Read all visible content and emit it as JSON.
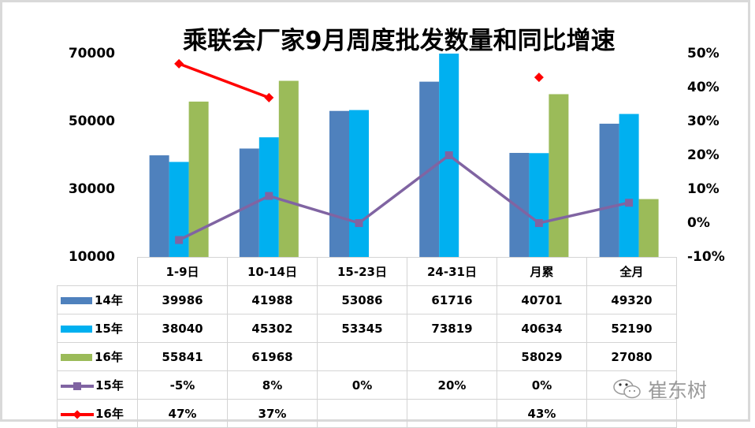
{
  "title": "乘联会厂家9月周度批发数量和同比增速",
  "colors": {
    "s14": "#4f81bd",
    "s15": "#00b0f0",
    "s16": "#9bbb59",
    "g15": "#8064a2",
    "g16": "#ff0000",
    "grid": "#d4d4d4"
  },
  "axes": {
    "left_ticks": [
      "70000",
      "50000",
      "30000",
      "10000"
    ],
    "right_ticks": [
      "50%",
      "40%",
      "30%",
      "20%",
      "10%",
      "0%",
      "-10%"
    ]
  },
  "table": {
    "headers": [
      "1-9日",
      "10-14日",
      "15-23日",
      "24-31日",
      "月累",
      "全月"
    ],
    "rows": [
      {
        "label": "14年",
        "legend": "bar",
        "color_key": "s14",
        "cells": [
          "39986",
          "41988",
          "53086",
          "61716",
          "40701",
          "49320"
        ]
      },
      {
        "label": "15年",
        "legend": "bar",
        "color_key": "s15",
        "cells": [
          "38040",
          "45302",
          "53345",
          "73819",
          "40634",
          "52190"
        ]
      },
      {
        "label": "16年",
        "legend": "bar",
        "color_key": "s16",
        "cells": [
          "55841",
          "61968",
          "",
          "",
          "58029",
          "27080"
        ]
      },
      {
        "label": "15年",
        "legend": "line-square",
        "color_key": "g15",
        "cells": [
          "-5%",
          "8%",
          "0%",
          "20%",
          "0%",
          ""
        ]
      },
      {
        "label": "16年",
        "legend": "line-diamond",
        "color_key": "g16",
        "cells": [
          "47%",
          "37%",
          "",
          "",
          "43%",
          ""
        ]
      }
    ]
  },
  "watermark": {
    "text": "崔东树",
    "icon": "wechat-icon"
  },
  "chart_data": {
    "type": "bar",
    "title": "乘联会厂家9月周度批发数量和同比增速",
    "categories": [
      "1-9日",
      "10-14日",
      "15-23日",
      "24-31日",
      "月累",
      "全月"
    ],
    "series": [
      {
        "name": "14年",
        "type": "bar",
        "axis": "left",
        "values": [
          39986,
          41988,
          53086,
          61716,
          40701,
          49320
        ]
      },
      {
        "name": "15年",
        "type": "bar",
        "axis": "left",
        "values": [
          38040,
          45302,
          53345,
          73819,
          40634,
          52190
        ]
      },
      {
        "name": "16年",
        "type": "bar",
        "axis": "left",
        "values": [
          55841,
          61968,
          null,
          null,
          58029,
          27080
        ]
      },
      {
        "name": "15年",
        "type": "line",
        "marker": "square",
        "axis": "right",
        "values": [
          -5,
          8,
          0,
          20,
          0,
          6
        ]
      },
      {
        "name": "16年",
        "type": "line",
        "marker": "diamond",
        "axis": "right",
        "values": [
          47,
          37,
          null,
          null,
          43,
          null
        ]
      }
    ],
    "xlabel": "",
    "ylabel": "",
    "ylim": [
      10000,
      70000
    ],
    "y2lim": [
      -10,
      50
    ],
    "y2_unit": "%",
    "grid": false,
    "legend": "data-table"
  }
}
